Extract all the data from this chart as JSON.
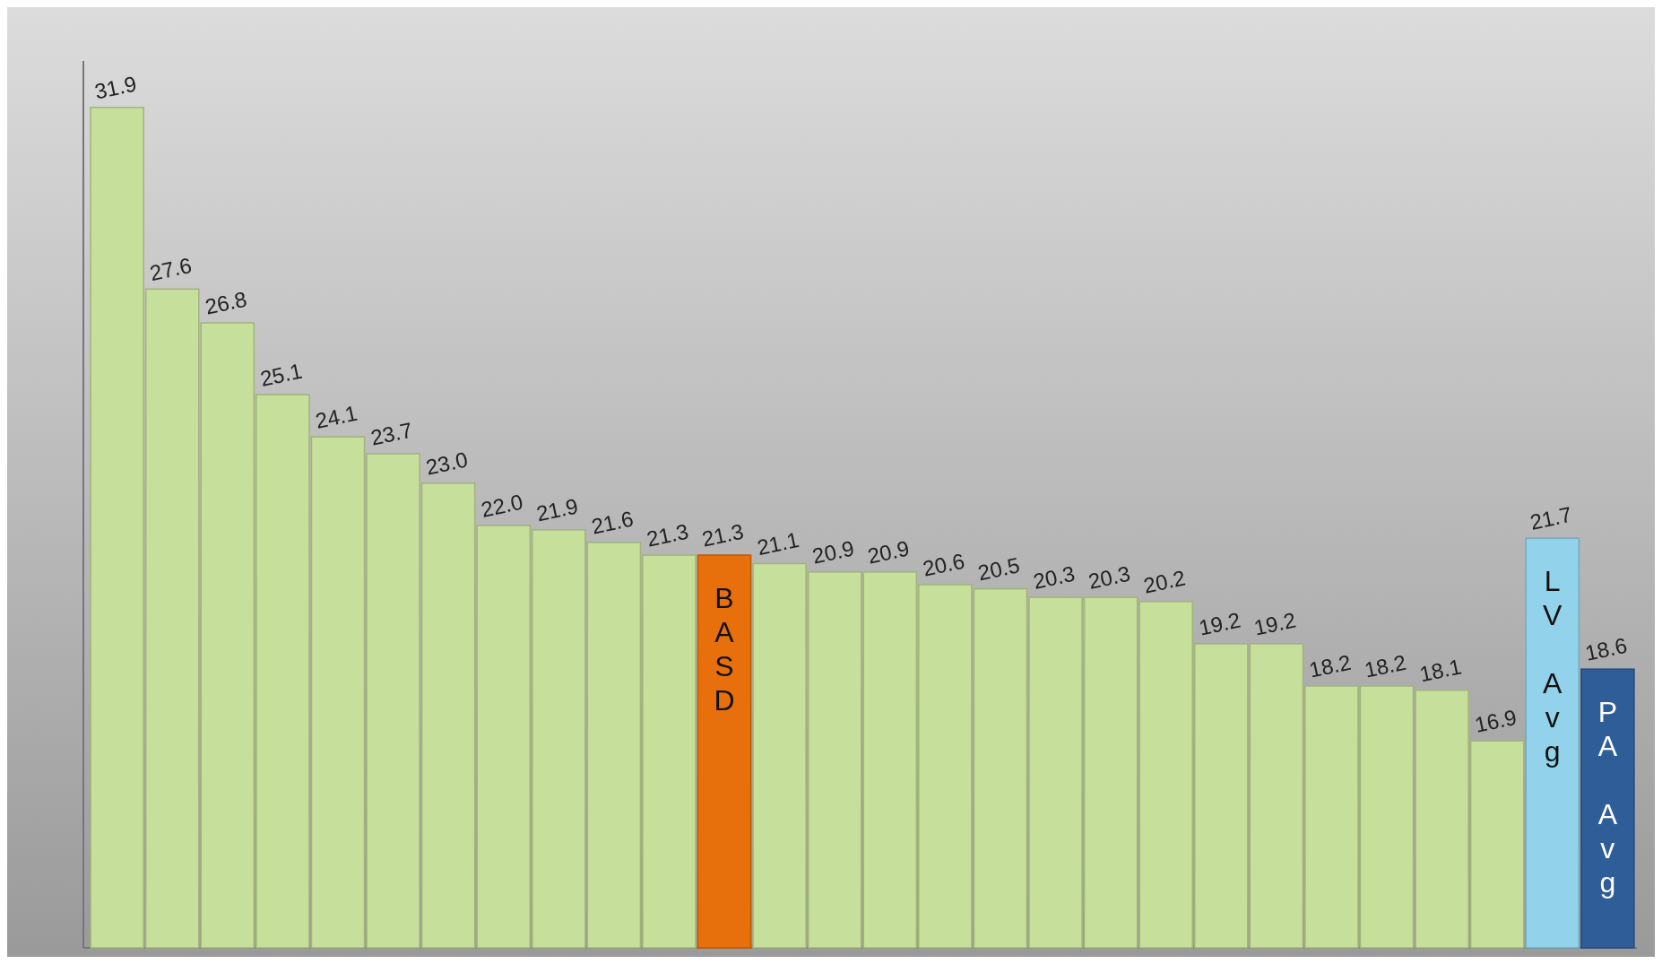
{
  "chart_data": {
    "type": "bar",
    "categories": [
      null,
      null,
      null,
      null,
      null,
      null,
      null,
      null,
      null,
      null,
      null,
      "BASD",
      null,
      null,
      null,
      null,
      null,
      null,
      null,
      null,
      null,
      null,
      null,
      null,
      null,
      null,
      "LV Avg",
      "PA Avg"
    ],
    "values": [
      31.9,
      27.6,
      26.8,
      25.1,
      24.1,
      23.7,
      23.0,
      22.0,
      21.9,
      21.6,
      21.3,
      21.3,
      21.1,
      20.9,
      20.9,
      20.6,
      20.5,
      20.3,
      20.3,
      20.2,
      19.2,
      19.2,
      18.2,
      18.2,
      18.1,
      16.9,
      21.7,
      18.6
    ],
    "colors": [
      "#c6df9a",
      "#c6df9a",
      "#c6df9a",
      "#c6df9a",
      "#c6df9a",
      "#c6df9a",
      "#c6df9a",
      "#c6df9a",
      "#c6df9a",
      "#c6df9a",
      "#c6df9a",
      "#e8700c",
      "#c6df9a",
      "#c6df9a",
      "#c6df9a",
      "#c6df9a",
      "#c6df9a",
      "#c6df9a",
      "#c6df9a",
      "#c6df9a",
      "#c6df9a",
      "#c6df9a",
      "#c6df9a",
      "#c6df9a",
      "#c6df9a",
      "#c6df9a",
      "#92d2ea",
      "#2f5d98"
    ],
    "value_labels": [
      "31.9",
      "27.6",
      "26.8",
      "25.1",
      "24.1",
      "23.7",
      "23.0",
      "22.0",
      "21.9",
      "21.6",
      "21.3",
      "21.3",
      "21.1",
      "20.9",
      "20.9",
      "20.6",
      "20.5",
      "20.3",
      "20.3",
      "20.2",
      "19.2",
      "19.2",
      "18.2",
      "18.2",
      "18.1",
      "16.9",
      "21.7",
      "18.6"
    ],
    "ylim": [
      12,
      33
    ]
  }
}
